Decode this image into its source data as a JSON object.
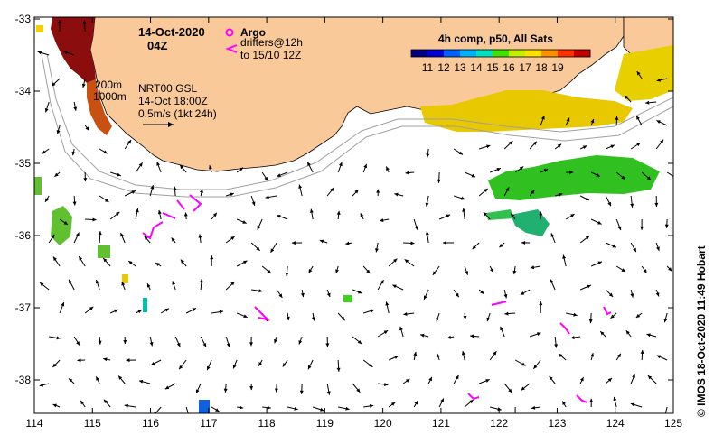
{
  "map": {
    "date": "14-Oct-2020",
    "time": "04Z",
    "composite_label": "4h comp, p50, All Sats",
    "argo_label": "Argo",
    "drifters_label": "drifters@12h",
    "drifters_range": "to 15/10 12Z",
    "isobath_200": "200m",
    "isobath_1000": "1000m",
    "altimetry_source": "NRT00 GSL",
    "altimetry_time": "14-Oct 18:00Z",
    "scale_label": "0.5m/s (1kt 24h)",
    "credit": "© IMOS 18-Oct-2020 11:49 Hobart",
    "colors": {
      "land": "#f9c99a",
      "ocean": "#ffffff",
      "drifter": "#ff00ff",
      "argo": "#ff00ff",
      "isobath": "#a0a0a0"
    },
    "colorbar": {
      "ticks": [
        "11",
        "12",
        "13",
        "14",
        "15",
        "16",
        "17",
        "18",
        "19"
      ],
      "colors": [
        "#000080",
        "#0000d0",
        "#0060ff",
        "#00b0ff",
        "#00e0c0",
        "#40e000",
        "#c0f000",
        "#ffe000",
        "#ff9000",
        "#ff3000",
        "#c00000"
      ]
    },
    "x_axis": {
      "ticks": [
        "114",
        "115",
        "116",
        "117",
        "118",
        "119",
        "120",
        "121",
        "122",
        "123",
        "124",
        "125"
      ]
    },
    "y_axis": {
      "ticks": [
        "-33",
        "-34",
        "-35",
        "-36",
        "-37",
        "-38"
      ]
    }
  }
}
